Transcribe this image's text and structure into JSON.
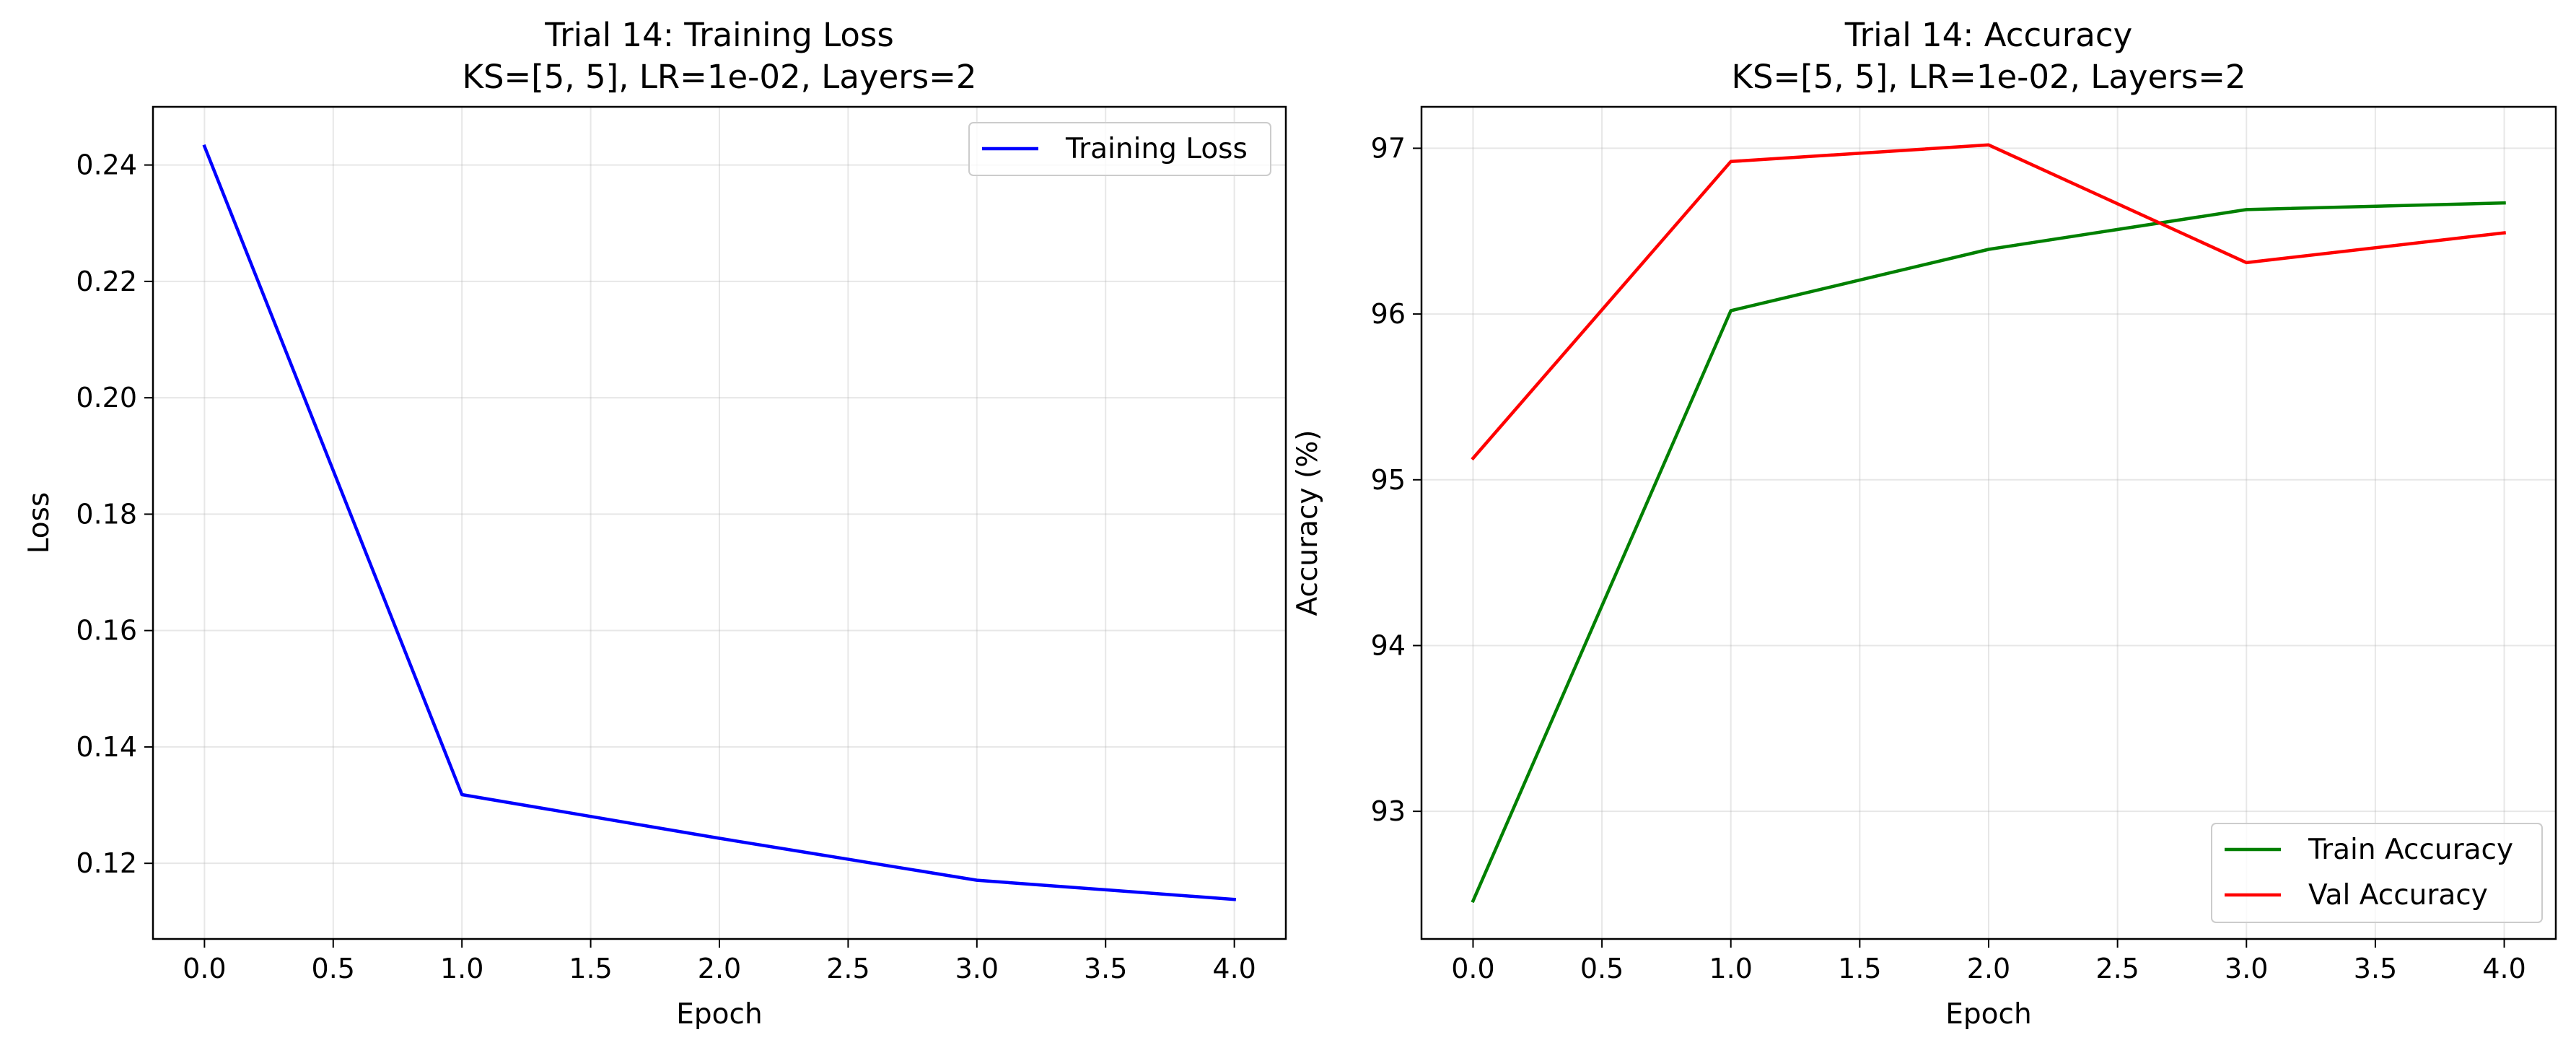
{
  "chart_data": [
    {
      "type": "line",
      "title_line1": "Trial 14: Training Loss",
      "title_line2": "KS=[5, 5], LR=1e-02, Layers=2",
      "xlabel": "Epoch",
      "ylabel": "Loss",
      "xlim": [
        -0.2,
        4.2
      ],
      "ylim": [
        0.107,
        0.25
      ],
      "xticks": [
        0.0,
        0.5,
        1.0,
        1.5,
        2.0,
        2.5,
        3.0,
        3.5,
        4.0
      ],
      "xtick_labels": [
        "0.0",
        "0.5",
        "1.0",
        "1.5",
        "2.0",
        "2.5",
        "3.0",
        "3.5",
        "4.0"
      ],
      "yticks": [
        0.12,
        0.14,
        0.16,
        0.18,
        0.2,
        0.22,
        0.24
      ],
      "ytick_labels": [
        "0.12",
        "0.14",
        "0.16",
        "0.18",
        "0.20",
        "0.22",
        "0.24"
      ],
      "grid": true,
      "legend_position": "top-right",
      "x": [
        0,
        1,
        2,
        3,
        4
      ],
      "series": [
        {
          "name": "Training Loss",
          "color": "#0000ff",
          "values": [
            0.2432,
            0.1318,
            0.1243,
            0.1171,
            0.1138
          ]
        }
      ]
    },
    {
      "type": "line",
      "title_line1": "Trial 14: Accuracy",
      "title_line2": "KS=[5, 5], LR=1e-02, Layers=2",
      "xlabel": "Epoch",
      "ylabel": "Accuracy (%)",
      "xlim": [
        -0.2,
        4.2
      ],
      "ylim": [
        92.23,
        97.25
      ],
      "xticks": [
        0.0,
        0.5,
        1.0,
        1.5,
        2.0,
        2.5,
        3.0,
        3.5,
        4.0
      ],
      "xtick_labels": [
        "0.0",
        "0.5",
        "1.0",
        "1.5",
        "2.0",
        "2.5",
        "3.0",
        "3.5",
        "4.0"
      ],
      "yticks": [
        93,
        94,
        95,
        96,
        97
      ],
      "ytick_labels": [
        "93",
        "94",
        "95",
        "96",
        "97"
      ],
      "grid": true,
      "legend_position": "bottom-right",
      "x": [
        0,
        1,
        2,
        3,
        4
      ],
      "series": [
        {
          "name": "Train Accuracy",
          "color": "#008000",
          "values": [
            92.46,
            96.02,
            96.39,
            96.63,
            96.67
          ]
        },
        {
          "name": "Val Accuracy",
          "color": "#ff0000",
          "values": [
            95.13,
            96.92,
            97.02,
            96.31,
            96.49
          ]
        }
      ]
    }
  ]
}
